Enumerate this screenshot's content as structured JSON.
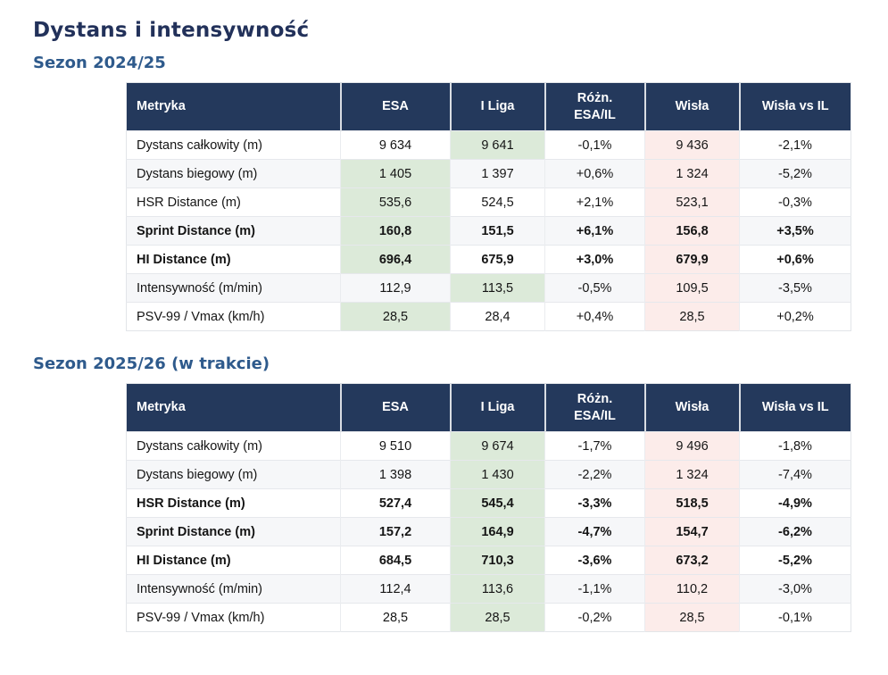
{
  "page": {
    "title": "Dystans i intensywność"
  },
  "colors": {
    "title_color": "#22315a",
    "section_title_color": "#2e5a8c",
    "header_bg": "#24395c",
    "header_text": "#ffffff",
    "better_green": "#dcead9",
    "wisla_pink": "#fcecea"
  },
  "chart_data": [
    {
      "type": "table",
      "title": "Sezon 2024/25",
      "columns": [
        "Metryka",
        "ESA",
        "I Liga",
        "Różn.\nESA/IL",
        "Wisła",
        "Wisła vs IL"
      ],
      "rows": [
        {
          "metric": "Dystans całkowity (m)",
          "esa": "9 634",
          "i_liga": "9 641",
          "diff_esa_il": "-0,1%",
          "wisla": "9 436",
          "wisla_vs_il": "-2,1%",
          "bold": false,
          "highlight": "i_liga"
        },
        {
          "metric": "Dystans biegowy (m)",
          "esa": "1 405",
          "i_liga": "1 397",
          "diff_esa_il": "+0,6%",
          "wisla": "1 324",
          "wisla_vs_il": "-5,2%",
          "bold": false,
          "highlight": "esa"
        },
        {
          "metric": "HSR Distance (m)",
          "esa": "535,6",
          "i_liga": "524,5",
          "diff_esa_il": "+2,1%",
          "wisla": "523,1",
          "wisla_vs_il": "-0,3%",
          "bold": false,
          "highlight": "esa"
        },
        {
          "metric": "Sprint Distance (m)",
          "esa": "160,8",
          "i_liga": "151,5",
          "diff_esa_il": "+6,1%",
          "wisla": "156,8",
          "wisla_vs_il": "+3,5%",
          "bold": true,
          "highlight": "esa"
        },
        {
          "metric": "HI Distance (m)",
          "esa": "696,4",
          "i_liga": "675,9",
          "diff_esa_il": "+3,0%",
          "wisla": "679,9",
          "wisla_vs_il": "+0,6%",
          "bold": true,
          "highlight": "esa"
        },
        {
          "metric": "Intensywność (m/min)",
          "esa": "112,9",
          "i_liga": "113,5",
          "diff_esa_il": "-0,5%",
          "wisla": "109,5",
          "wisla_vs_il": "-3,5%",
          "bold": false,
          "highlight": "i_liga"
        },
        {
          "metric": "PSV-99 / Vmax (km/h)",
          "esa": "28,5",
          "i_liga": "28,4",
          "diff_esa_il": "+0,4%",
          "wisla": "28,5",
          "wisla_vs_il": "+0,2%",
          "bold": false,
          "highlight": "esa"
        }
      ]
    },
    {
      "type": "table",
      "title": "Sezon 2025/26 (w trakcie)",
      "columns": [
        "Metryka",
        "ESA",
        "I Liga",
        "Różn.\nESA/IL",
        "Wisła",
        "Wisła vs IL"
      ],
      "rows": [
        {
          "metric": "Dystans całkowity (m)",
          "esa": "9 510",
          "i_liga": "9 674",
          "diff_esa_il": "-1,7%",
          "wisla": "9 496",
          "wisla_vs_il": "-1,8%",
          "bold": false,
          "highlight": "i_liga"
        },
        {
          "metric": "Dystans biegowy (m)",
          "esa": "1 398",
          "i_liga": "1 430",
          "diff_esa_il": "-2,2%",
          "wisla": "1 324",
          "wisla_vs_il": "-7,4%",
          "bold": false,
          "highlight": "i_liga"
        },
        {
          "metric": "HSR Distance (m)",
          "esa": "527,4",
          "i_liga": "545,4",
          "diff_esa_il": "-3,3%",
          "wisla": "518,5",
          "wisla_vs_il": "-4,9%",
          "bold": true,
          "highlight": "i_liga"
        },
        {
          "metric": "Sprint Distance (m)",
          "esa": "157,2",
          "i_liga": "164,9",
          "diff_esa_il": "-4,7%",
          "wisla": "154,7",
          "wisla_vs_il": "-6,2%",
          "bold": true,
          "highlight": "i_liga"
        },
        {
          "metric": "HI Distance (m)",
          "esa": "684,5",
          "i_liga": "710,3",
          "diff_esa_il": "-3,6%",
          "wisla": "673,2",
          "wisla_vs_il": "-5,2%",
          "bold": true,
          "highlight": "i_liga"
        },
        {
          "metric": "Intensywność (m/min)",
          "esa": "112,4",
          "i_liga": "113,6",
          "diff_esa_il": "-1,1%",
          "wisla": "110,2",
          "wisla_vs_il": "-3,0%",
          "bold": false,
          "highlight": "i_liga"
        },
        {
          "metric": "PSV-99 / Vmax (km/h)",
          "esa": "28,5",
          "i_liga": "28,5",
          "diff_esa_il": "-0,2%",
          "wisla": "28,5",
          "wisla_vs_il": "-0,1%",
          "bold": false,
          "highlight": "i_liga"
        }
      ]
    }
  ]
}
